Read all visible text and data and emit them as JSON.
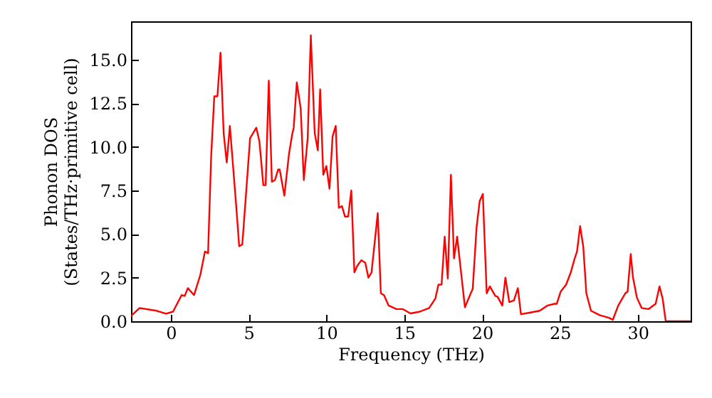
{
  "chart_data": {
    "type": "line",
    "xlabel": "Frequency (THz)",
    "ylabel": "Phonon DOS\n(States/THz·primitive cell)",
    "xlim": [
      -2.55,
      33.4
    ],
    "ylim": [
      0,
      17.2
    ],
    "xticks": [
      0,
      5,
      10,
      15,
      20,
      25,
      30
    ],
    "yticks": [
      {
        "value": 0,
        "label": "0.0"
      },
      {
        "value": 2.5,
        "label": "2.5"
      },
      {
        "value": 5,
        "label": "5.0"
      },
      {
        "value": 7.5,
        "label": "7.5"
      },
      {
        "value": 10,
        "label": "10.0"
      },
      {
        "value": 12.5,
        "label": "12.5"
      },
      {
        "value": 15,
        "label": "15.0"
      }
    ],
    "grid": false,
    "marker": "none",
    "line_style": "solid",
    "series": [
      {
        "color": "#ff0000",
        "x": [
          -2.55,
          -2.0,
          -0.9,
          -0.3,
          0.15,
          0.7,
          0.9,
          1.1,
          1.5,
          1.9,
          2.2,
          2.4,
          2.6,
          2.8,
          3.0,
          3.2,
          3.4,
          3.6,
          3.8,
          4.2,
          4.4,
          4.6,
          5.1,
          5.5,
          5.7,
          5.95,
          6.1,
          6.3,
          6.5,
          6.7,
          6.9,
          7.0,
          7.3,
          7.6,
          7.8,
          7.9,
          8.1,
          8.35,
          8.55,
          8.8,
          9.0,
          9.25,
          9.45,
          9.6,
          9.8,
          10.0,
          10.2,
          10.4,
          10.6,
          10.8,
          11.0,
          11.2,
          11.4,
          11.6,
          11.8,
          12.0,
          12.25,
          12.5,
          12.7,
          12.9,
          13.3,
          13.5,
          13.7,
          14.0,
          14.5,
          14.9,
          15.4,
          16.0,
          16.6,
          17.0,
          17.2,
          17.4,
          17.6,
          17.8,
          18.0,
          18.2,
          18.4,
          18.9,
          19.2,
          19.4,
          19.65,
          19.85,
          20.05,
          20.3,
          20.5,
          20.85,
          21.0,
          21.3,
          21.5,
          21.75,
          22.05,
          22.3,
          22.5,
          23.1,
          23.7,
          24.2,
          24.65,
          24.8,
          25.05,
          25.4,
          25.7,
          25.95,
          26.1,
          26.3,
          26.5,
          26.7,
          27.0,
          27.55,
          28.15,
          28.4,
          28.75,
          29.2,
          29.35,
          29.55,
          29.7,
          29.95,
          30.25,
          30.7,
          31.15,
          31.4,
          31.6,
          31.8,
          33.4
        ],
        "values": [
          0.3,
          0.76,
          0.6,
          0.43,
          0.55,
          1.5,
          1.45,
          1.9,
          1.5,
          2.65,
          4.0,
          3.9,
          9.5,
          12.9,
          12.9,
          15.4,
          10.8,
          9.1,
          11.2,
          6.7,
          4.3,
          4.4,
          10.5,
          11.1,
          10.3,
          7.8,
          7.8,
          13.8,
          8.0,
          8.1,
          8.7,
          8.7,
          7.2,
          9.6,
          10.7,
          11.1,
          13.7,
          12.2,
          8.1,
          10.5,
          16.4,
          10.8,
          9.8,
          13.3,
          8.4,
          8.9,
          7.6,
          10.6,
          11.2,
          6.5,
          6.6,
          6.0,
          6.0,
          7.5,
          2.8,
          3.2,
          3.5,
          3.35,
          2.5,
          2.8,
          6.2,
          1.6,
          1.5,
          0.9,
          0.7,
          0.7,
          0.45,
          0.55,
          0.76,
          1.3,
          2.1,
          2.1,
          4.85,
          2.45,
          8.4,
          3.6,
          4.85,
          0.8,
          1.45,
          1.85,
          5.4,
          6.9,
          7.3,
          1.6,
          2.0,
          1.45,
          1.4,
          0.9,
          2.5,
          1.1,
          1.2,
          1.9,
          0.4,
          0.5,
          0.6,
          0.9,
          1.0,
          1.0,
          1.7,
          2.1,
          2.8,
          3.6,
          4.0,
          5.45,
          4.3,
          1.6,
          0.6,
          0.35,
          0.2,
          0.08,
          0.9,
          1.6,
          1.7,
          3.85,
          2.5,
          1.35,
          0.76,
          0.7,
          1.0,
          2.0,
          1.3,
          0.0,
          0.0
        ]
      }
    ]
  }
}
